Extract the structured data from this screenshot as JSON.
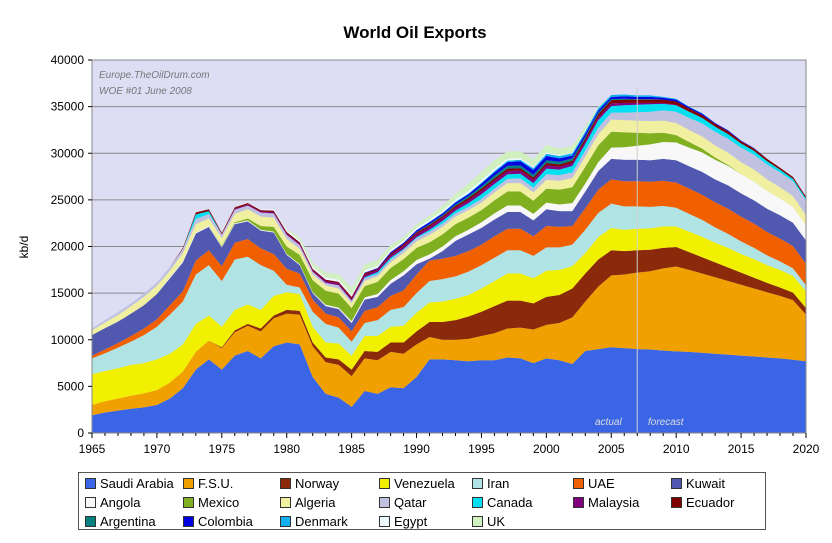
{
  "chart_data": {
    "type": "area",
    "stacked": true,
    "title": "World Oil Exports",
    "ylabel": "kb/d",
    "xlabel": "",
    "xlim": [
      1965,
      2020
    ],
    "ylim": [
      0,
      40000
    ],
    "x_ticks": [
      1965,
      1970,
      1975,
      1980,
      1985,
      1990,
      1995,
      2000,
      2005,
      2010,
      2015,
      2020
    ],
    "y_ticks": [
      0,
      5000,
      10000,
      15000,
      20000,
      25000,
      30000,
      35000,
      40000
    ],
    "y_tick_labels": [
      "0",
      "5000",
      "10000",
      "15000",
      "20000",
      "25000",
      "30000",
      "35000",
      "40000"
    ],
    "grid": "horizontal",
    "plot_background": "#ddddf4",
    "legend_position": "bottom",
    "annotations": {
      "source_line1": "Europe.TheOilDrum.com",
      "source_line2": "WOE #01 June 2008",
      "actual_label": "actual",
      "forecast_label": "forecast",
      "forecast_start_year": 2007
    },
    "x": [
      1965,
      1966,
      1967,
      1968,
      1969,
      1970,
      1971,
      1972,
      1973,
      1974,
      1975,
      1976,
      1977,
      1978,
      1979,
      1980,
      1981,
      1982,
      1983,
      1984,
      1985,
      1986,
      1987,
      1988,
      1989,
      1990,
      1991,
      1992,
      1993,
      1994,
      1995,
      1996,
      1997,
      1998,
      1999,
      2000,
      2001,
      2002,
      2003,
      2004,
      2005,
      2006,
      2007,
      2008,
      2009,
      2010,
      2011,
      2012,
      2013,
      2014,
      2015,
      2016,
      2017,
      2018,
      2019,
      2020
    ],
    "series": [
      {
        "name": "Saudi Arabia",
        "color": "#3a66e6",
        "values": [
          1900,
          2200,
          2400,
          2600,
          2750,
          3000,
          3700,
          4800,
          6800,
          7900,
          6800,
          8300,
          8800,
          8000,
          9300,
          9700,
          9500,
          6000,
          4200,
          3800,
          2800,
          4500,
          4200,
          4900,
          4800,
          6000,
          7900,
          7900,
          7800,
          7700,
          7800,
          7800,
          8100,
          8000,
          7500,
          8000,
          7800,
          7400,
          8800,
          9000,
          9200,
          9100,
          9000,
          8950,
          8850,
          8750,
          8700,
          8600,
          8500,
          8400,
          8300,
          8200,
          8100,
          8000,
          7850,
          7700
        ]
      },
      {
        "name": "F.S.U.",
        "color": "#f0a000",
        "values": [
          1100,
          1200,
          1300,
          1400,
          1500,
          1600,
          1700,
          1800,
          1900,
          2000,
          2300,
          2500,
          2700,
          2900,
          3000,
          3100,
          3200,
          3300,
          3400,
          3500,
          3300,
          3500,
          3600,
          3800,
          3700,
          3500,
          2400,
          2100,
          2200,
          2400,
          2600,
          2900,
          3100,
          3300,
          3600,
          3600,
          4000,
          5000,
          5300,
          6700,
          7700,
          7900,
          8200,
          8400,
          8800,
          9100,
          8800,
          8500,
          8200,
          7900,
          7600,
          7300,
          7000,
          6700,
          6400,
          5000
        ]
      },
      {
        "name": "Norway",
        "color": "#8a2a0a",
        "values": [
          0,
          0,
          0,
          0,
          0,
          0,
          0,
          0,
          0,
          0,
          100,
          200,
          200,
          300,
          300,
          400,
          400,
          400,
          500,
          600,
          700,
          800,
          900,
          1000,
          1200,
          1400,
          1600,
          1900,
          2100,
          2400,
          2600,
          2900,
          3000,
          2900,
          2800,
          3000,
          3000,
          3100,
          3000,
          2900,
          2700,
          2500,
          2400,
          2300,
          2200,
          2100,
          1900,
          1750,
          1600,
          1450,
          1300,
          1150,
          1000,
          900,
          800,
          700
        ]
      },
      {
        "name": "Venezuela",
        "color": "#f0f000",
        "values": [
          3300,
          3250,
          3250,
          3300,
          3250,
          3300,
          3100,
          2900,
          3000,
          2700,
          2200,
          2200,
          2100,
          2000,
          2100,
          1900,
          1800,
          1700,
          1600,
          1700,
          1500,
          1600,
          1700,
          1700,
          1800,
          2000,
          2100,
          2200,
          2300,
          2300,
          2500,
          2700,
          2900,
          2900,
          2700,
          2800,
          2700,
          2400,
          2200,
          2400,
          2400,
          2300,
          2300,
          2300,
          2300,
          2200,
          2200,
          2200,
          2100,
          2100,
          2000,
          2000,
          1900,
          1900,
          1800,
          1800
        ]
      },
      {
        "name": "Iran",
        "color": "#b0e4e4",
        "values": [
          1700,
          1900,
          2200,
          2500,
          3000,
          3500,
          4200,
          4600,
          5300,
          5400,
          4900,
          5400,
          5100,
          4800,
          2700,
          800,
          700,
          1600,
          2000,
          1700,
          1500,
          1400,
          1700,
          1800,
          2000,
          2100,
          2300,
          2400,
          2400,
          2500,
          2500,
          2500,
          2500,
          2500,
          2400,
          2500,
          2400,
          2300,
          2500,
          2600,
          2600,
          2500,
          2400,
          2300,
          2200,
          2000,
          1900,
          1800,
          1650,
          1500,
          1350,
          1200,
          1050,
          900,
          800,
          650
        ]
      },
      {
        "name": "UAE",
        "color": "#f06000",
        "values": [
          300,
          400,
          500,
          600,
          700,
          800,
          1000,
          1100,
          1500,
          1600,
          1600,
          1800,
          1900,
          1800,
          1800,
          1700,
          1500,
          1300,
          1100,
          1100,
          1100,
          1300,
          1400,
          1500,
          1800,
          2000,
          2200,
          2200,
          2200,
          2200,
          2200,
          2300,
          2300,
          2300,
          2100,
          2300,
          2200,
          2000,
          2300,
          2500,
          2600,
          2700,
          2700,
          2700,
          2700,
          2700,
          2700,
          2700,
          2700,
          2700,
          2650,
          2600,
          2500,
          2450,
          2400,
          2300
        ]
      },
      {
        "name": "Kuwait",
        "color": "#5058b0",
        "values": [
          2200,
          2300,
          2300,
          2400,
          2500,
          2700,
          2900,
          3100,
          2900,
          2500,
          2000,
          2000,
          1900,
          1900,
          2300,
          1500,
          900,
          700,
          800,
          900,
          900,
          1200,
          1100,
          1300,
          1600,
          1100,
          200,
          800,
          1600,
          1800,
          1800,
          1800,
          1800,
          1800,
          1700,
          1800,
          1700,
          1600,
          1800,
          2000,
          2200,
          2300,
          2300,
          2300,
          2350,
          2400,
          2400,
          2450,
          2450,
          2500,
          2500,
          2500,
          2500,
          2500,
          2500,
          2500
        ]
      },
      {
        "name": "Angola",
        "color": "#f8f8f8",
        "values": [
          0,
          0,
          0,
          0,
          0,
          0,
          100,
          100,
          100,
          100,
          100,
          100,
          100,
          100,
          100,
          100,
          100,
          100,
          150,
          150,
          200,
          250,
          300,
          400,
          450,
          450,
          450,
          500,
          500,
          500,
          600,
          650,
          700,
          700,
          700,
          700,
          700,
          850,
          850,
          950,
          1200,
          1350,
          1500,
          1700,
          1800,
          1900,
          2000,
          2100,
          2100,
          2100,
          2050,
          2000,
          1900,
          1800,
          1700,
          1600
        ]
      },
      {
        "name": "Mexico",
        "color": "#80b020",
        "values": [
          0,
          0,
          0,
          0,
          0,
          0,
          0,
          0,
          0,
          0,
          100,
          100,
          200,
          400,
          500,
          800,
          1000,
          1300,
          1500,
          1500,
          1400,
          1200,
          1300,
          1300,
          1300,
          1300,
          1300,
          1300,
          1300,
          1300,
          1300,
          1400,
          1500,
          1500,
          1400,
          1500,
          1600,
          1700,
          1800,
          1800,
          1700,
          1600,
          1400,
          1200,
          1000,
          800,
          600,
          400,
          250,
          100,
          0,
          0,
          0,
          0,
          0,
          0
        ]
      },
      {
        "name": "Algeria",
        "color": "#f0f0a0",
        "values": [
          500,
          600,
          700,
          800,
          900,
          900,
          700,
          900,
          900,
          800,
          800,
          900,
          1000,
          1000,
          1000,
          800,
          650,
          600,
          600,
          550,
          550,
          550,
          600,
          600,
          650,
          700,
          800,
          800,
          800,
          800,
          800,
          850,
          900,
          900,
          900,
          950,
          950,
          1000,
          1100,
          1200,
          1300,
          1300,
          1300,
          1300,
          1300,
          1300,
          1300,
          1300,
          1300,
          1300,
          1300,
          1300,
          1250,
          1200,
          1150,
          1100
        ]
      },
      {
        "name": "Qatar",
        "color": "#c0c0e0",
        "values": [
          200,
          250,
          300,
          300,
          350,
          350,
          400,
          450,
          550,
          500,
          400,
          450,
          400,
          450,
          450,
          450,
          400,
          300,
          250,
          350,
          250,
          300,
          250,
          300,
          350,
          350,
          350,
          350,
          350,
          350,
          400,
          400,
          450,
          500,
          500,
          600,
          600,
          600,
          650,
          700,
          750,
          800,
          900,
          1000,
          1100,
          1200,
          1300,
          1400,
          1450,
          1500,
          1550,
          1600,
          1600,
          1600,
          1600,
          1600
        ]
      },
      {
        "name": "Canada",
        "color": "#00e0f0",
        "values": [
          0,
          0,
          0,
          0,
          0,
          0,
          0,
          0,
          500,
          300,
          0,
          0,
          0,
          0,
          0,
          0,
          0,
          0,
          0,
          0,
          0,
          100,
          200,
          200,
          100,
          100,
          200,
          300,
          300,
          400,
          500,
          500,
          500,
          500,
          500,
          600,
          600,
          700,
          700,
          800,
          700,
          800,
          800,
          800,
          700,
          700,
          650,
          600,
          550,
          500,
          450,
          400,
          350,
          300,
          250,
          200
        ]
      },
      {
        "name": "Malaysia",
        "color": "#800080",
        "values": [
          0,
          0,
          0,
          0,
          0,
          0,
          0,
          0,
          0,
          0,
          0,
          100,
          100,
          100,
          150,
          150,
          150,
          150,
          200,
          200,
          200,
          250,
          250,
          250,
          300,
          300,
          300,
          300,
          300,
          300,
          350,
          350,
          350,
          350,
          350,
          350,
          300,
          300,
          300,
          300,
          300,
          250,
          200,
          150,
          100,
          50,
          0,
          0,
          0,
          0,
          0,
          0,
          0,
          0,
          0,
          0
        ]
      },
      {
        "name": "Ecuador",
        "color": "#800000",
        "values": [
          0,
          0,
          0,
          0,
          0,
          0,
          0,
          100,
          200,
          200,
          150,
          150,
          150,
          150,
          150,
          150,
          150,
          150,
          150,
          150,
          200,
          200,
          100,
          200,
          200,
          200,
          200,
          200,
          200,
          250,
          250,
          250,
          250,
          250,
          250,
          250,
          250,
          250,
          300,
          350,
          350,
          350,
          350,
          350,
          350,
          350,
          350,
          300,
          300,
          300,
          250,
          250,
          250,
          200,
          200,
          200
        ]
      },
      {
        "name": "Argentina",
        "color": "#008080",
        "values": [
          0,
          0,
          0,
          0,
          0,
          0,
          0,
          0,
          0,
          0,
          0,
          0,
          0,
          0,
          0,
          0,
          0,
          0,
          0,
          0,
          0,
          0,
          0,
          0,
          0,
          50,
          100,
          100,
          150,
          200,
          250,
          300,
          300,
          300,
          300,
          300,
          300,
          250,
          200,
          150,
          100,
          100,
          50,
          50,
          0,
          0,
          0,
          0,
          0,
          0,
          0,
          0,
          0,
          0,
          0,
          0
        ]
      },
      {
        "name": "Colombia",
        "color": "#0000e0",
        "values": [
          0,
          0,
          0,
          0,
          0,
          0,
          0,
          0,
          0,
          0,
          0,
          0,
          0,
          0,
          0,
          0,
          0,
          0,
          0,
          0,
          0,
          50,
          100,
          150,
          150,
          200,
          200,
          200,
          200,
          200,
          300,
          350,
          400,
          450,
          500,
          450,
          350,
          300,
          300,
          250,
          250,
          250,
          250,
          250,
          200,
          200,
          150,
          150,
          100,
          100,
          50,
          50,
          0,
          0,
          0,
          0
        ]
      },
      {
        "name": "Denmark",
        "color": "#10b0f0",
        "values": [
          0,
          0,
          0,
          0,
          0,
          0,
          0,
          0,
          0,
          0,
          0,
          0,
          0,
          0,
          0,
          0,
          0,
          0,
          0,
          0,
          0,
          0,
          0,
          0,
          0,
          0,
          50,
          50,
          100,
          100,
          100,
          150,
          150,
          150,
          200,
          250,
          250,
          250,
          250,
          250,
          200,
          200,
          150,
          150,
          100,
          100,
          50,
          50,
          0,
          0,
          0,
          0,
          0,
          0,
          0,
          0
        ]
      },
      {
        "name": "Egypt",
        "color": "#eef8ff",
        "values": [
          0,
          0,
          0,
          0,
          0,
          0,
          0,
          0,
          0,
          0,
          0,
          0,
          0,
          100,
          150,
          200,
          250,
          250,
          250,
          250,
          250,
          250,
          250,
          250,
          250,
          250,
          250,
          250,
          250,
          250,
          250,
          250,
          200,
          200,
          150,
          150,
          100,
          100,
          100,
          50,
          0,
          0,
          0,
          0,
          0,
          0,
          0,
          0,
          0,
          0,
          0,
          0,
          0,
          0,
          0,
          0
        ]
      },
      {
        "name": "UK",
        "color": "#d0f0c0",
        "values": [
          0,
          0,
          0,
          0,
          0,
          0,
          0,
          0,
          0,
          0,
          0,
          0,
          0,
          0,
          0,
          100,
          300,
          400,
          500,
          600,
          700,
          600,
          600,
          500,
          400,
          400,
          400,
          500,
          600,
          800,
          900,
          900,
          800,
          700,
          800,
          800,
          700,
          700,
          400,
          100,
          0,
          0,
          0,
          0,
          0,
          0,
          0,
          0,
          0,
          0,
          0,
          0,
          0,
          0,
          0,
          0
        ]
      }
    ]
  }
}
